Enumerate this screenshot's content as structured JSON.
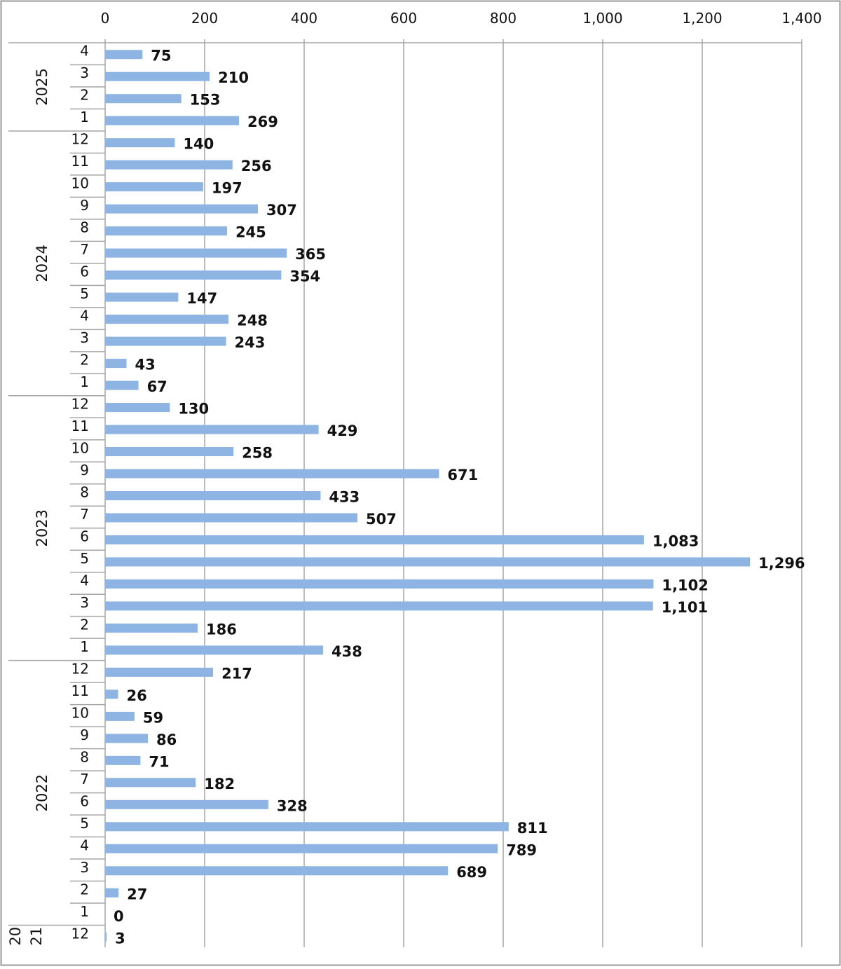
{
  "chart_data": {
    "type": "bar",
    "orientation": "horizontal",
    "title": "",
    "xlabel": "",
    "ylabel": "",
    "xlim": [
      0,
      1400
    ],
    "x_ticks": [
      "0",
      "200",
      "400",
      "600",
      "800",
      "1,000",
      "1,200",
      "1,400"
    ],
    "x_tick_values": [
      0,
      200,
      400,
      600,
      800,
      1000,
      1200,
      1400
    ],
    "grid": "vertical",
    "legend": "none",
    "bar_color": "#8DB4E2",
    "groups": [
      {
        "label": "2025",
        "categories": [
          "4",
          "3",
          "2",
          "1"
        ],
        "values": [
          75,
          210,
          153,
          269
        ],
        "value_labels": [
          "75",
          "210",
          "153",
          "269"
        ]
      },
      {
        "label": "2024",
        "categories": [
          "12",
          "11",
          "10",
          "9",
          "8",
          "7",
          "6",
          "5",
          "4",
          "3",
          "2",
          "1"
        ],
        "values": [
          140,
          256,
          197,
          307,
          245,
          365,
          354,
          147,
          248,
          243,
          43,
          67
        ],
        "value_labels": [
          "140",
          "256",
          "197",
          "307",
          "245",
          "365",
          "354",
          "147",
          "248",
          "243",
          "43",
          "67"
        ]
      },
      {
        "label": "2023",
        "categories": [
          "12",
          "11",
          "10",
          "9",
          "8",
          "7",
          "6",
          "5",
          "4",
          "3",
          "2",
          "1"
        ],
        "values": [
          130,
          429,
          258,
          671,
          433,
          507,
          1083,
          1296,
          1102,
          1101,
          186,
          438
        ],
        "value_labels": [
          "130",
          "429",
          "258",
          "671",
          "433",
          "507",
          "1,083",
          "1,296",
          "1,102",
          "1,101",
          "186",
          "438"
        ]
      },
      {
        "label": "2022",
        "categories": [
          "12",
          "11",
          "10",
          "9",
          "8",
          "7",
          "6",
          "5",
          "4",
          "3",
          "2",
          "1"
        ],
        "values": [
          217,
          26,
          59,
          86,
          71,
          182,
          328,
          811,
          789,
          689,
          27,
          0
        ],
        "value_labels": [
          "217",
          "26",
          "59",
          "86",
          "71",
          "182",
          "328",
          "811",
          "789",
          "689",
          "27",
          "0"
        ]
      },
      {
        "label": "2021",
        "label_lines": [
          "20",
          "21"
        ],
        "categories": [
          "12"
        ],
        "values": [
          3
        ],
        "value_labels": [
          "3"
        ]
      }
    ]
  }
}
